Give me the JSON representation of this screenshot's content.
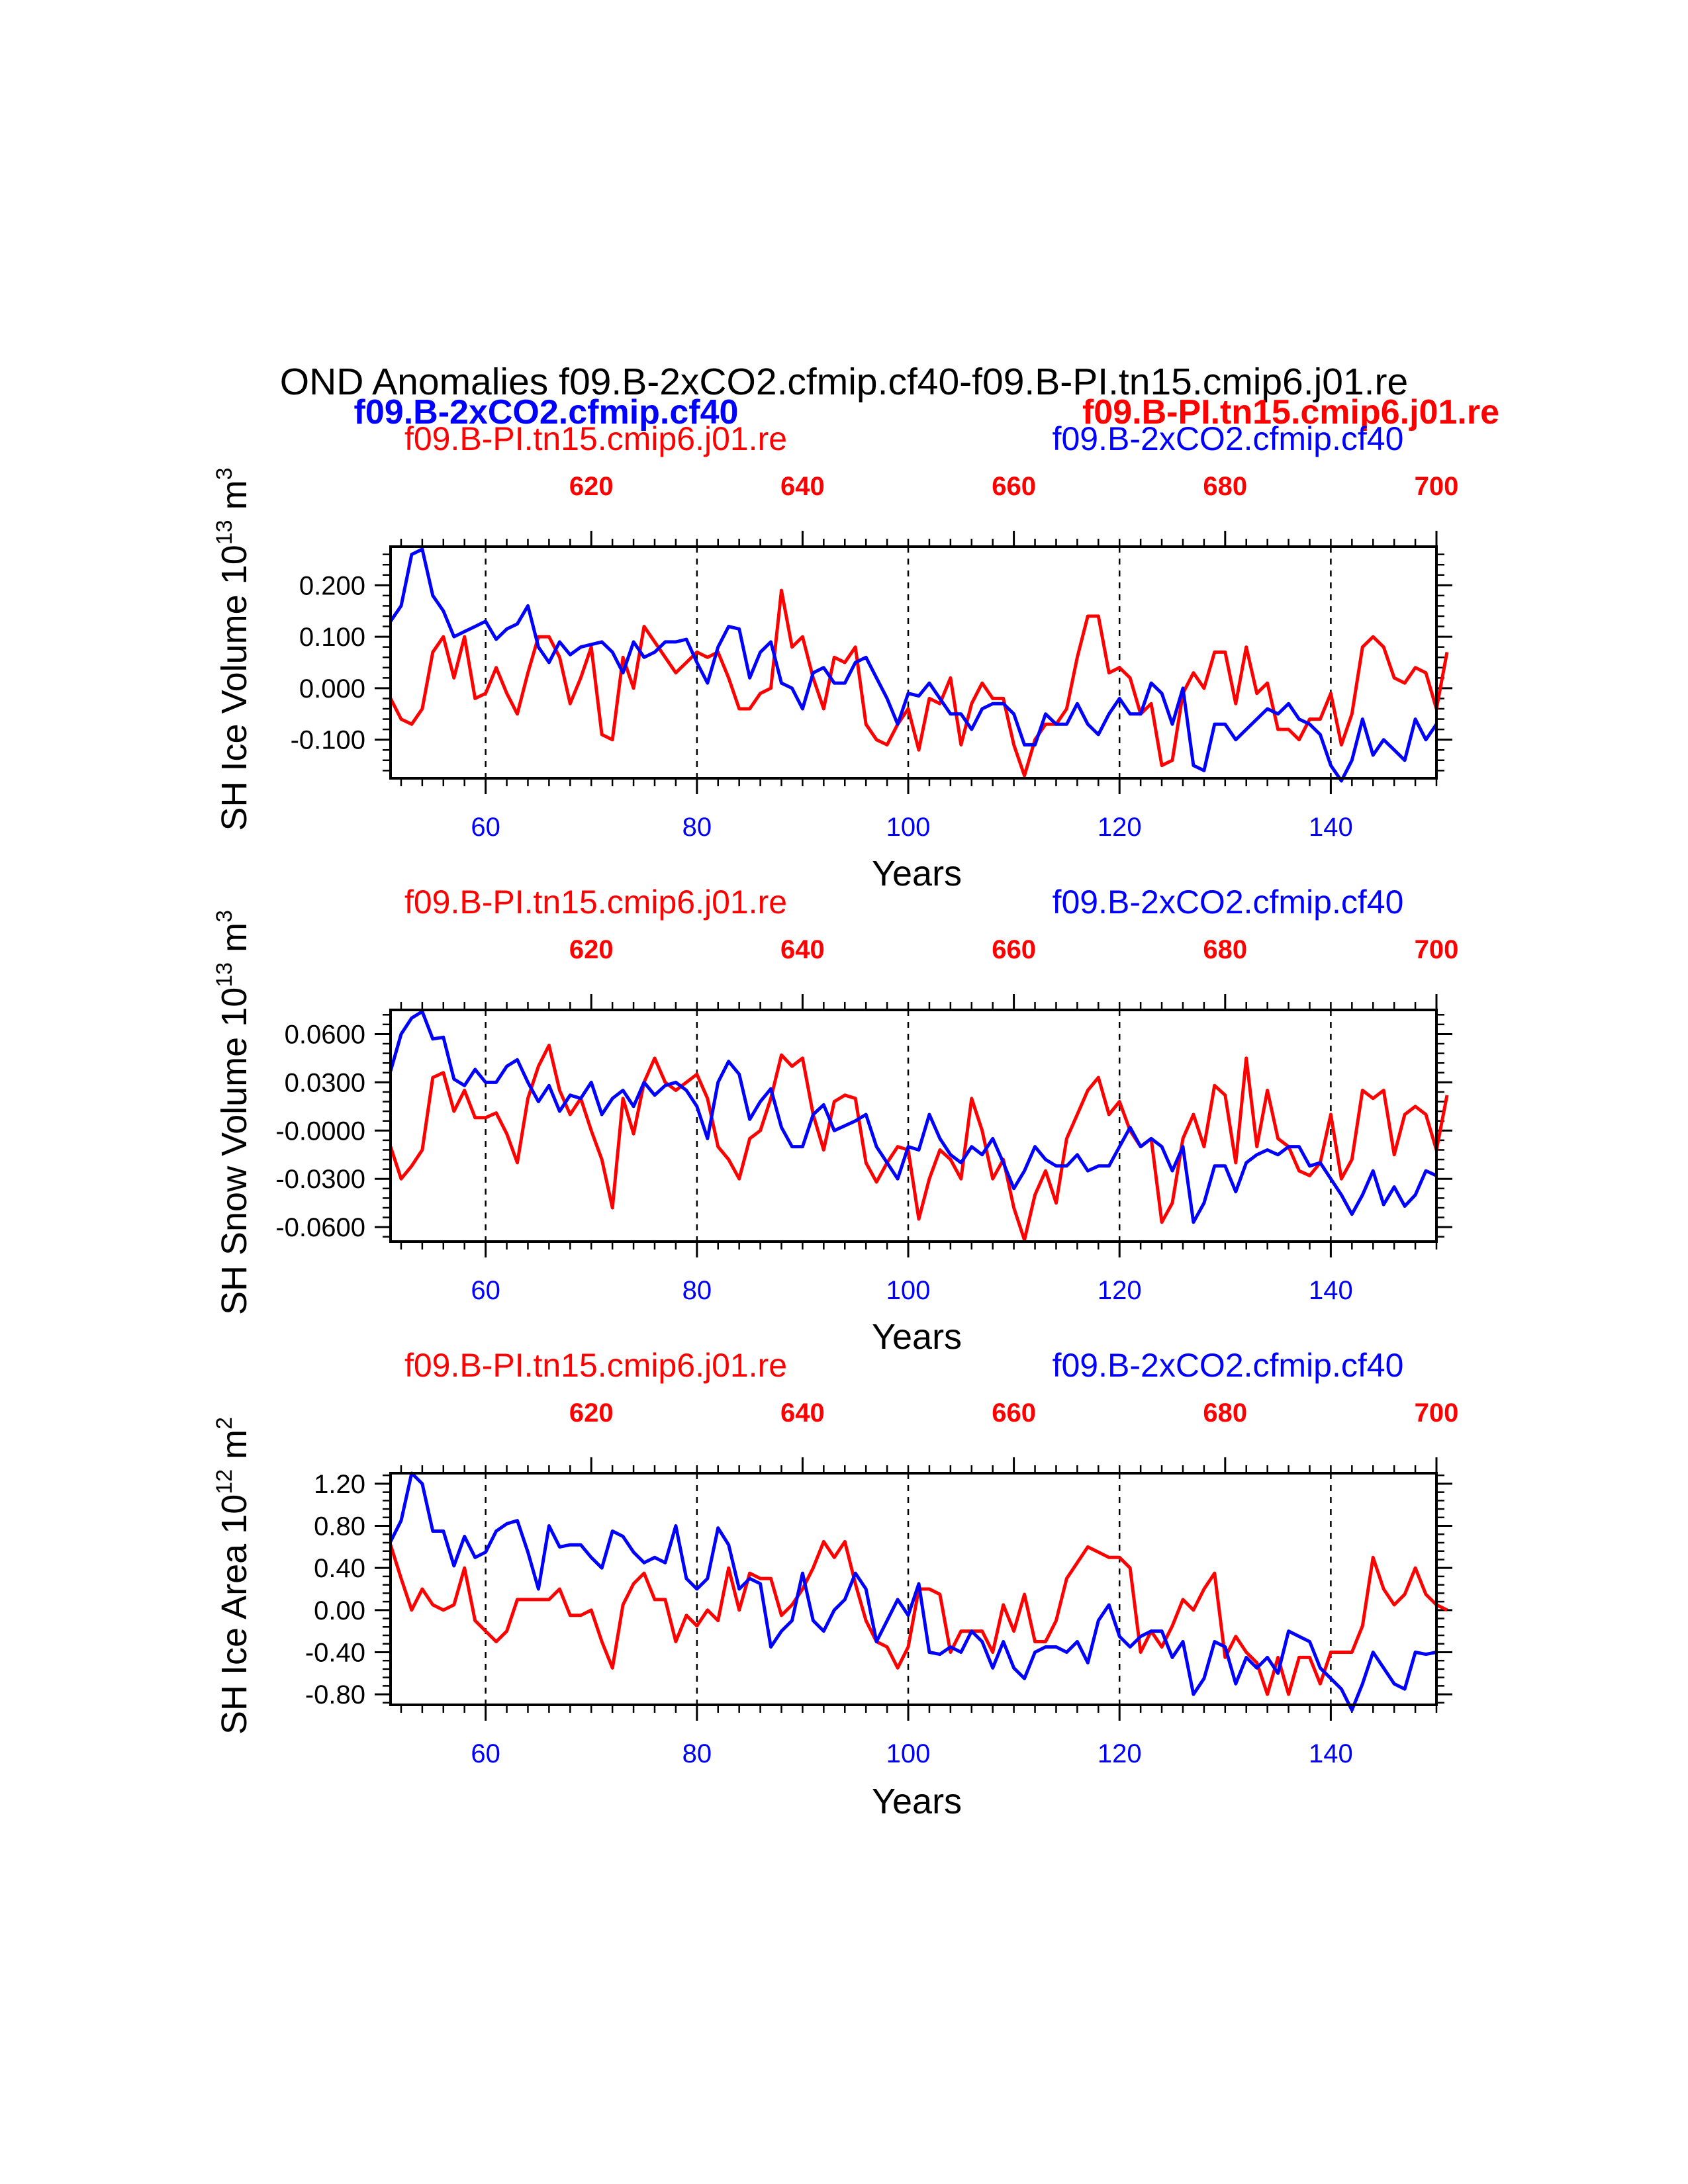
{
  "title": "OND Anomalies f09.B-2xCO2.cfmip.cf40-f09.B-PI.tn15.cmip6.j01.re",
  "legend_top": {
    "left_bold": "f09.B-2xCO2.cfmip.cf40",
    "right_bold": "f09.B-PI.tn15.cmip6.j01.re"
  },
  "colors": {
    "pi": "#ff0000",
    "co2": "#0000ff",
    "axis": "#000000"
  },
  "chart_data": [
    {
      "type": "line",
      "title": "",
      "ylabel": "SH Ice Volume 10",
      "ylabel_sup": "13",
      "ylabel_unit": "m",
      "ylabel_unit_sup": "3",
      "xlabel": "Years",
      "label_pi": "f09.B-PI.tn15.cmip6.j01.re",
      "label_co2": "f09.B-2xCO2.cfmip.cf40",
      "xlim": [
        51,
        150
      ],
      "top_xlim": [
        601,
        700
      ],
      "ylim": [
        -0.175,
        0.275
      ],
      "yticks": [
        -0.1,
        0.0,
        0.1,
        0.2
      ],
      "ytick_labels": [
        "-0.100",
        "0.000",
        "0.100",
        "0.200"
      ],
      "xticks": [
        60,
        80,
        100,
        120,
        140
      ],
      "xtick_labels": [
        "60",
        "80",
        "100",
        "120",
        "140"
      ],
      "top_xticks": [
        620,
        640,
        660,
        680,
        700
      ],
      "top_xtick_labels": [
        "620",
        "640",
        "660",
        "680",
        "700"
      ],
      "gridlines_x": [
        60,
        80,
        100,
        120,
        140
      ],
      "series": [
        {
          "name": "f09.B-2xCO2.cfmip.cf40",
          "color": "#0000ff",
          "x_start": 51,
          "values": [
            0.13,
            0.16,
            0.26,
            0.27,
            0.18,
            0.15,
            0.1,
            0.11,
            0.12,
            0.13,
            0.095,
            0.115,
            0.125,
            0.16,
            0.08,
            0.05,
            0.09,
            0.065,
            0.08,
            0.085,
            0.09,
            0.07,
            0.03,
            0.09,
            0.06,
            0.07,
            0.09,
            0.09,
            0.095,
            0.05,
            0.01,
            0.08,
            0.12,
            0.115,
            0.02,
            0.07,
            0.09,
            0.01,
            0.0,
            -0.04,
            0.03,
            0.04,
            0.01,
            0.01,
            0.05,
            0.06,
            0.02,
            -0.02,
            -0.07,
            -0.01,
            -0.015,
            0.01,
            -0.02,
            -0.05,
            -0.05,
            -0.08,
            -0.04,
            -0.03,
            -0.03,
            -0.05,
            -0.11,
            -0.11,
            -0.05,
            -0.07,
            -0.07,
            -0.03,
            -0.07,
            -0.09,
            -0.05,
            -0.02,
            -0.05,
            -0.05,
            0.01,
            -0.01,
            -0.07,
            0.0,
            -0.15,
            -0.16,
            -0.07,
            -0.07,
            -0.1,
            -0.08,
            -0.06,
            -0.04,
            -0.05,
            -0.03,
            -0.06,
            -0.07,
            -0.09,
            -0.15,
            -0.18,
            -0.14,
            -0.06,
            -0.13,
            -0.1,
            -0.12,
            -0.14,
            -0.06,
            -0.1,
            -0.07
          ]
        },
        {
          "name": "f09.B-PI.tn15.cmip6.j01.re",
          "color": "#ff0000",
          "x_start": 51,
          "values": [
            -0.02,
            -0.06,
            -0.07,
            -0.04,
            0.07,
            0.1,
            0.02,
            0.1,
            -0.02,
            -0.01,
            0.04,
            -0.01,
            -0.05,
            0.03,
            0.1,
            0.1,
            0.06,
            -0.03,
            0.02,
            0.08,
            -0.09,
            -0.1,
            0.06,
            0.0,
            0.12,
            0.09,
            0.06,
            0.03,
            0.05,
            0.07,
            0.06,
            0.07,
            0.02,
            -0.04,
            -0.04,
            -0.01,
            0.0,
            0.19,
            0.08,
            0.1,
            0.02,
            -0.04,
            0.06,
            0.05,
            0.08,
            -0.07,
            -0.1,
            -0.11,
            -0.07,
            -0.04,
            -0.12,
            -0.02,
            -0.03,
            0.02,
            -0.11,
            -0.03,
            0.01,
            -0.02,
            -0.02,
            -0.11,
            -0.17,
            -0.1,
            -0.07,
            -0.07,
            -0.04,
            0.06,
            0.14,
            0.14,
            0.03,
            0.04,
            0.02,
            -0.05,
            -0.03,
            -0.15,
            -0.14,
            -0.01,
            0.03,
            0.0,
            0.07,
            0.07,
            -0.03,
            0.08,
            -0.01,
            0.01,
            -0.08,
            -0.08,
            -0.1,
            -0.06,
            -0.06,
            -0.01,
            -0.11,
            -0.05,
            0.08,
            0.1,
            0.08,
            0.02,
            0.01,
            0.04,
            0.03,
            -0.04,
            0.07
          ]
        }
      ]
    },
    {
      "type": "line",
      "title": "",
      "ylabel": "SH Snow Volume 10",
      "ylabel_sup": "13",
      "ylabel_unit": "m",
      "ylabel_unit_sup": "3",
      "xlabel": "Years",
      "label_pi": "f09.B-PI.tn15.cmip6.j01.re",
      "label_co2": "f09.B-2xCO2.cfmip.cf40",
      "xlim": [
        51,
        150
      ],
      "top_xlim": [
        601,
        700
      ],
      "ylim": [
        -0.069,
        0.075
      ],
      "yticks": [
        -0.06,
        -0.03,
        0.0,
        0.03,
        0.06
      ],
      "ytick_labels": [
        "-0.0600",
        "-0.0300",
        "-0.0000",
        "0.0300",
        "0.0600"
      ],
      "xticks": [
        60,
        80,
        100,
        120,
        140
      ],
      "xtick_labels": [
        "60",
        "80",
        "100",
        "120",
        "140"
      ],
      "top_xticks": [
        620,
        640,
        660,
        680,
        700
      ],
      "top_xtick_labels": [
        "620",
        "640",
        "660",
        "680",
        "700"
      ],
      "gridlines_x": [
        60,
        80,
        100,
        120,
        140
      ],
      "series": [
        {
          "name": "f09.B-2xCO2.cfmip.cf40",
          "color": "#0000ff",
          "x_start": 51,
          "values": [
            0.037,
            0.06,
            0.07,
            0.074,
            0.057,
            0.058,
            0.032,
            0.028,
            0.038,
            0.03,
            0.03,
            0.04,
            0.044,
            0.03,
            0.018,
            0.028,
            0.012,
            0.022,
            0.02,
            0.03,
            0.01,
            0.02,
            0.025,
            0.015,
            0.03,
            0.022,
            0.028,
            0.03,
            0.025,
            0.015,
            -0.005,
            0.03,
            0.043,
            0.035,
            0.007,
            0.018,
            0.026,
            0.002,
            -0.01,
            -0.01,
            0.01,
            0.016,
            0.0,
            0.003,
            0.006,
            0.01,
            -0.01,
            -0.02,
            -0.03,
            -0.01,
            -0.012,
            0.01,
            -0.005,
            -0.015,
            -0.02,
            -0.01,
            -0.015,
            -0.005,
            -0.02,
            -0.036,
            -0.025,
            -0.01,
            -0.018,
            -0.022,
            -0.022,
            -0.015,
            -0.025,
            -0.022,
            -0.022,
            -0.01,
            0.002,
            -0.01,
            -0.005,
            -0.01,
            -0.025,
            -0.01,
            -0.057,
            -0.045,
            -0.022,
            -0.022,
            -0.038,
            -0.02,
            -0.015,
            -0.012,
            -0.015,
            -0.01,
            -0.01,
            -0.022,
            -0.02,
            -0.03,
            -0.04,
            -0.052,
            -0.04,
            -0.025,
            -0.046,
            -0.035,
            -0.047,
            -0.04,
            -0.025,
            -0.028
          ]
        },
        {
          "name": "f09.B-PI.tn15.cmip6.j01.re",
          "color": "#ff0000",
          "x_start": 51,
          "values": [
            -0.01,
            -0.03,
            -0.022,
            -0.012,
            0.033,
            0.036,
            0.012,
            0.025,
            0.008,
            0.008,
            0.011,
            -0.002,
            -0.02,
            0.02,
            0.04,
            0.053,
            0.025,
            0.01,
            0.02,
            0.0,
            -0.018,
            -0.048,
            0.02,
            -0.002,
            0.03,
            0.045,
            0.03,
            0.025,
            0.03,
            0.035,
            0.02,
            -0.01,
            -0.018,
            -0.03,
            -0.005,
            0.0,
            0.02,
            0.047,
            0.04,
            0.045,
            0.01,
            -0.012,
            0.018,
            0.022,
            0.02,
            -0.02,
            -0.032,
            -0.02,
            -0.01,
            -0.012,
            -0.055,
            -0.03,
            -0.012,
            -0.018,
            -0.03,
            0.02,
            0.0,
            -0.03,
            -0.018,
            -0.048,
            -0.068,
            -0.04,
            -0.025,
            -0.045,
            -0.005,
            0.01,
            0.025,
            0.033,
            0.01,
            0.018,
            0.0,
            -0.01,
            -0.005,
            -0.057,
            -0.045,
            -0.005,
            0.01,
            -0.01,
            0.028,
            0.022,
            -0.02,
            0.045,
            -0.01,
            0.025,
            -0.005,
            -0.01,
            -0.025,
            -0.028,
            -0.02,
            0.01,
            -0.03,
            -0.018,
            0.025,
            0.02,
            0.025,
            -0.015,
            0.01,
            0.015,
            0.01,
            -0.012,
            0.022
          ]
        }
      ]
    },
    {
      "type": "line",
      "title": "",
      "ylabel": "SH Ice Area 10",
      "ylabel_sup": "12",
      "ylabel_unit": "m",
      "ylabel_unit_sup": "2",
      "xlabel": "Years",
      "label_pi": "f09.B-PI.tn15.cmip6.j01.re",
      "label_co2": "f09.B-2xCO2.cfmip.cf40",
      "xlim": [
        51,
        150
      ],
      "top_xlim": [
        601,
        700
      ],
      "ylim": [
        -0.9,
        1.3
      ],
      "yticks": [
        -0.8,
        -0.4,
        0.0,
        0.4,
        0.8,
        1.2
      ],
      "ytick_labels": [
        "-0.80",
        "-0.40",
        "0.00",
        "0.40",
        "0.80",
        "1.20"
      ],
      "xticks": [
        60,
        80,
        100,
        120,
        140
      ],
      "xtick_labels": [
        "60",
        "80",
        "100",
        "120",
        "140"
      ],
      "top_xticks": [
        620,
        640,
        660,
        680,
        700
      ],
      "top_xtick_labels": [
        "620",
        "640",
        "660",
        "680",
        "700"
      ],
      "gridlines_x": [
        60,
        80,
        100,
        120,
        140
      ],
      "series": [
        {
          "name": "f09.B-2xCO2.cfmip.cf40",
          "color": "#0000ff",
          "x_start": 51,
          "values": [
            0.65,
            0.85,
            1.3,
            1.2,
            0.75,
            0.75,
            0.42,
            0.7,
            0.5,
            0.55,
            0.75,
            0.82,
            0.85,
            0.55,
            0.2,
            0.8,
            0.6,
            0.62,
            0.62,
            0.5,
            0.4,
            0.75,
            0.7,
            0.55,
            0.45,
            0.5,
            0.45,
            0.8,
            0.3,
            0.2,
            0.3,
            0.78,
            0.62,
            0.2,
            0.3,
            0.25,
            -0.35,
            -0.2,
            -0.1,
            0.35,
            -0.1,
            -0.2,
            0.0,
            0.1,
            0.35,
            0.2,
            -0.3,
            -0.1,
            0.1,
            -0.05,
            0.25,
            -0.4,
            -0.42,
            -0.35,
            -0.4,
            -0.2,
            -0.3,
            -0.55,
            -0.3,
            -0.55,
            -0.65,
            -0.4,
            -0.35,
            -0.35,
            -0.4,
            -0.3,
            -0.5,
            -0.1,
            0.05,
            -0.25,
            -0.35,
            -0.25,
            -0.2,
            -0.2,
            -0.45,
            -0.3,
            -0.8,
            -0.65,
            -0.3,
            -0.35,
            -0.7,
            -0.45,
            -0.55,
            -0.45,
            -0.6,
            -0.2,
            -0.25,
            -0.3,
            -0.55,
            -0.65,
            -0.75,
            -0.95,
            -0.7,
            -0.4,
            -0.55,
            -0.7,
            -0.75,
            -0.4,
            -0.42,
            -0.4
          ]
        },
        {
          "name": "f09.B-PI.tn15.cmip6.j01.re",
          "color": "#ff0000",
          "x_start": 51,
          "values": [
            0.62,
            0.3,
            0.0,
            0.2,
            0.05,
            0.0,
            0.05,
            0.4,
            -0.1,
            -0.2,
            -0.3,
            -0.2,
            0.1,
            0.1,
            0.1,
            0.1,
            0.2,
            -0.05,
            -0.05,
            0.0,
            -0.3,
            -0.55,
            0.05,
            0.25,
            0.35,
            0.1,
            0.1,
            -0.3,
            -0.05,
            -0.15,
            0.0,
            -0.1,
            0.4,
            0.0,
            0.35,
            0.3,
            0.3,
            -0.05,
            0.05,
            0.2,
            0.4,
            0.65,
            0.5,
            0.65,
            0.25,
            -0.1,
            -0.3,
            -0.35,
            -0.55,
            -0.35,
            0.2,
            0.2,
            0.15,
            -0.4,
            -0.2,
            -0.2,
            -0.2,
            -0.4,
            0.05,
            -0.2,
            0.15,
            -0.3,
            -0.3,
            -0.1,
            0.3,
            0.45,
            0.6,
            0.55,
            0.5,
            0.5,
            0.4,
            -0.4,
            -0.2,
            -0.35,
            -0.15,
            0.1,
            0.0,
            0.2,
            0.35,
            -0.45,
            -0.25,
            -0.4,
            -0.5,
            -0.8,
            -0.45,
            -0.8,
            -0.45,
            -0.45,
            -0.7,
            -0.4,
            -0.4,
            -0.4,
            -0.15,
            0.5,
            0.2,
            0.05,
            0.15,
            0.4,
            0.15,
            0.05,
            0.0
          ]
        }
      ]
    }
  ]
}
